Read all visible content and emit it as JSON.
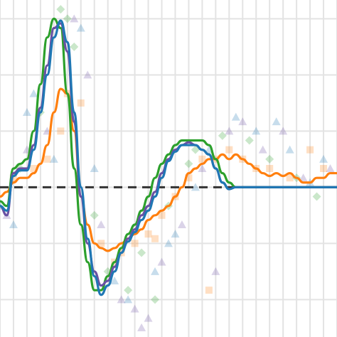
{
  "chart_data": {
    "type": "line",
    "title": "",
    "xlabel": "",
    "ylabel": "",
    "xlim": [
      0,
      100
    ],
    "ylim": [
      -1.6,
      2.0
    ],
    "grid": true,
    "reference_line": {
      "y": 0,
      "style": "dashed",
      "color": "#333333"
    },
    "colors": {
      "orange": "#ff7f0e",
      "green": "#2ca02c",
      "purple": "#6a51a3",
      "blue": "#1f77b4",
      "grid": "#e3e3e3",
      "ref": "#333333"
    },
    "x": [
      0,
      2,
      4,
      6,
      8,
      10,
      12,
      14,
      16,
      18,
      20,
      22,
      24,
      26,
      28,
      30,
      32,
      34,
      36,
      38,
      40,
      42,
      44,
      46,
      48,
      50,
      52,
      54,
      56,
      58,
      60,
      62,
      64,
      66,
      68,
      70,
      72,
      74,
      76,
      78,
      80,
      82,
      84,
      86,
      88,
      90,
      92,
      94,
      96,
      98,
      100
    ],
    "series": [
      {
        "key": "orange",
        "values": [
          -0.1,
          -0.05,
          0.05,
          0.1,
          0.1,
          0.15,
          0.25,
          0.45,
          0.8,
          1.05,
          1.0,
          0.6,
          -0.1,
          -0.4,
          -0.6,
          -0.65,
          -0.68,
          -0.65,
          -0.6,
          -0.55,
          -0.5,
          -0.45,
          -0.35,
          -0.3,
          -0.25,
          -0.2,
          -0.1,
          0.0,
          0.15,
          0.2,
          0.25,
          0.3,
          0.3,
          0.35,
          0.3,
          0.35,
          0.3,
          0.25,
          0.2,
          0.15,
          0.12,
          0.15,
          0.12,
          0.15,
          0.1,
          0.05,
          0.05,
          0.1,
          0.1,
          0.15,
          0.15
        ]
      },
      {
        "key": "green",
        "values": [
          -0.15,
          -0.2,
          0.2,
          0.25,
          0.3,
          0.6,
          1.1,
          1.6,
          1.8,
          1.7,
          1.0,
          0.2,
          -0.4,
          -0.8,
          -1.1,
          -1.1,
          -0.95,
          -0.8,
          -0.65,
          -0.5,
          -0.4,
          -0.25,
          -0.1,
          0.1,
          0.25,
          0.35,
          0.45,
          0.5,
          0.5,
          0.5,
          0.5,
          0.45,
          0.3,
          0.15,
          0.05,
          0.0,
          0.0,
          0.0,
          0.0,
          0.0,
          0.0,
          0.0,
          0.0,
          0.0,
          0.0,
          0.0,
          0.0,
          0.0,
          0.0,
          0.0,
          0.0
        ]
      },
      {
        "key": "purple",
        "values": [
          -0.2,
          -0.3,
          0.15,
          0.2,
          0.2,
          0.45,
          0.85,
          1.3,
          1.7,
          1.75,
          1.45,
          0.7,
          -0.1,
          -0.6,
          -0.9,
          -1.05,
          -1.0,
          -0.85,
          -0.7,
          -0.55,
          -0.45,
          -0.3,
          -0.2,
          -0.05,
          0.15,
          0.3,
          0.4,
          0.45,
          0.48,
          0.45,
          0.4,
          0.35,
          0.2,
          0.05,
          -0.02,
          0.0,
          0.0,
          0.0,
          0.0,
          0.0,
          0.0,
          0.0,
          0.0,
          0.0,
          0.0,
          0.0,
          0.0,
          0.0,
          0.0,
          0.0,
          0.0
        ]
      },
      {
        "key": "blue",
        "values": [
          -0.2,
          -0.25,
          0.12,
          0.18,
          0.18,
          0.4,
          0.8,
          1.2,
          1.6,
          1.78,
          1.55,
          0.8,
          0.0,
          -0.55,
          -0.95,
          -1.15,
          -1.05,
          -0.9,
          -0.7,
          -0.58,
          -0.48,
          -0.35,
          -0.25,
          -0.1,
          0.1,
          0.28,
          0.38,
          0.45,
          0.45,
          0.45,
          0.4,
          0.35,
          0.2,
          0.05,
          -0.02,
          0.0,
          0.0,
          0.0,
          0.0,
          0.0,
          0.0,
          0.0,
          0.0,
          0.0,
          0.0,
          0.0,
          0.0,
          0.0,
          0.0,
          0.0,
          0.0
        ]
      }
    ],
    "scatter": [
      {
        "key": "orange",
        "marker": "square",
        "points": [
          [
            4,
            0.1
          ],
          [
            10,
            0.2
          ],
          [
            14,
            0.3
          ],
          [
            18,
            0.6
          ],
          [
            20,
            1.0
          ],
          [
            24,
            0.9
          ],
          [
            30,
            -0.6
          ],
          [
            36,
            -0.7
          ],
          [
            40,
            -0.6
          ],
          [
            44,
            -0.5
          ],
          [
            48,
            -0.3
          ],
          [
            52,
            -0.1
          ],
          [
            56,
            0.1
          ],
          [
            60,
            0.3
          ],
          [
            64,
            0.3
          ],
          [
            68,
            0.4
          ],
          [
            72,
            0.3
          ],
          [
            76,
            0.2
          ],
          [
            80,
            0.2
          ],
          [
            86,
            0.1
          ],
          [
            92,
            0.4
          ],
          [
            96,
            0.2
          ],
          [
            62,
            -1.1
          ],
          [
            34,
            -0.8
          ],
          [
            46,
            -0.55
          ]
        ]
      },
      {
        "key": "green",
        "marker": "diamond",
        "points": [
          [
            6,
            0.2
          ],
          [
            12,
            0.8
          ],
          [
            18,
            1.9
          ],
          [
            20,
            1.8
          ],
          [
            22,
            1.5
          ],
          [
            28,
            -0.3
          ],
          [
            32,
            -0.9
          ],
          [
            38,
            -1.1
          ],
          [
            42,
            -0.7
          ],
          [
            50,
            -0.2
          ],
          [
            58,
            0.4
          ],
          [
            66,
            0.55
          ],
          [
            74,
            0.5
          ],
          [
            80,
            0.3
          ],
          [
            88,
            0.1
          ],
          [
            94,
            -0.1
          ],
          [
            46,
            -1.2
          ],
          [
            56,
            0.25
          ]
        ]
      },
      {
        "key": "purple",
        "marker": "triangle",
        "points": [
          [
            2,
            -0.3
          ],
          [
            8,
            0.4
          ],
          [
            14,
            0.6
          ],
          [
            22,
            1.8
          ],
          [
            26,
            1.2
          ],
          [
            30,
            -0.4
          ],
          [
            36,
            -1.2
          ],
          [
            40,
            -1.3
          ],
          [
            44,
            -1.4
          ],
          [
            48,
            -0.8
          ],
          [
            54,
            -0.4
          ],
          [
            60,
            0.2
          ],
          [
            68,
            0.6
          ],
          [
            72,
            0.7
          ],
          [
            78,
            0.4
          ],
          [
            84,
            0.6
          ],
          [
            90,
            0.1
          ],
          [
            98,
            0.2
          ],
          [
            64,
            -0.9
          ],
          [
            42,
            -1.5
          ]
        ]
      },
      {
        "key": "blue",
        "marker": "triangle",
        "points": [
          [
            0,
            -0.2
          ],
          [
            4,
            -0.4
          ],
          [
            8,
            0.8
          ],
          [
            10,
            1.0
          ],
          [
            16,
            0.3
          ],
          [
            24,
            1.7
          ],
          [
            28,
            0.2
          ],
          [
            34,
            -1.0
          ],
          [
            38,
            -1.2
          ],
          [
            46,
            -0.9
          ],
          [
            52,
            -0.5
          ],
          [
            58,
            0.0
          ],
          [
            62,
            0.4
          ],
          [
            70,
            0.75
          ],
          [
            76,
            0.6
          ],
          [
            82,
            0.7
          ],
          [
            86,
            0.4
          ],
          [
            92,
            0.05
          ],
          [
            96,
            0.3
          ],
          [
            50,
            -0.6
          ]
        ]
      }
    ]
  }
}
